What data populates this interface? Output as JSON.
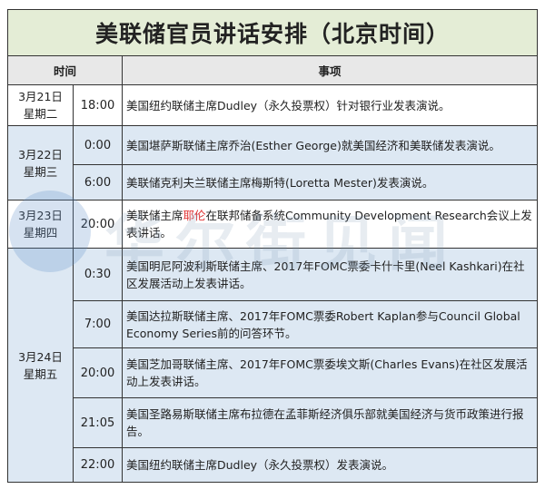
{
  "title": "美联储官员讲话安排（北京时间）",
  "headers": {
    "time": "时间",
    "event": "事项"
  },
  "days": [
    {
      "date": "3月21日",
      "weekday": "星期二",
      "items": [
        {
          "time": "18:00",
          "text": "美国纽约联储主席Dudley（永久投票权）针对银行业发表演说。"
        }
      ]
    },
    {
      "date": "3月22日",
      "weekday": "星期三",
      "items": [
        {
          "time": "0:00",
          "text": "美国堪萨斯联储主席乔治(Esther George)就美国经济和美联储发表演说。"
        },
        {
          "time": "6:00",
          "text": "美联储克利夫兰联储主席梅斯特(Loretta Mester)发表演说。"
        }
      ]
    },
    {
      "date": "3月23日",
      "weekday": "星期四",
      "items": [
        {
          "time": "20:00",
          "text_pre": "美联储主席",
          "text_red": "耶伦",
          "text_post": "在联邦储备系统Community Development Research会议上发表讲话。"
        }
      ]
    },
    {
      "date": "3月24日",
      "weekday": "星期五",
      "items": [
        {
          "time": "0:30",
          "text": "美国明尼阿波利斯联储主席、2017年FOMC票委卡什卡里(Neel Kashkari)在社区发展活动上发表讲话。"
        },
        {
          "time": "7:00",
          "text": "美国达拉斯联储主席、2017年FOMC票委Robert Kaplan参与Council Global Economy Series前的问答环节。"
        },
        {
          "time": "20:00",
          "text": "美国芝加哥联储主席、2017年FOMC票委埃文斯(Charles Evans)在社区发展活动上发表讲话。"
        },
        {
          "time": "21:05",
          "text": "美国圣路易斯联储主席布拉德在孟菲斯经济俱乐部就美国经济与货币政策进行报告。"
        },
        {
          "time": "22:00",
          "text": "美国纽约联储主席Dudley（永久投票权）发表演说。"
        }
      ]
    }
  ],
  "watermark": "华尔街见闻",
  "colors": {
    "title_bg": "#e4edd6",
    "header_bg": "#e8e8e8",
    "row_blue": "#dde8f3",
    "highlight": "#e03030"
  }
}
